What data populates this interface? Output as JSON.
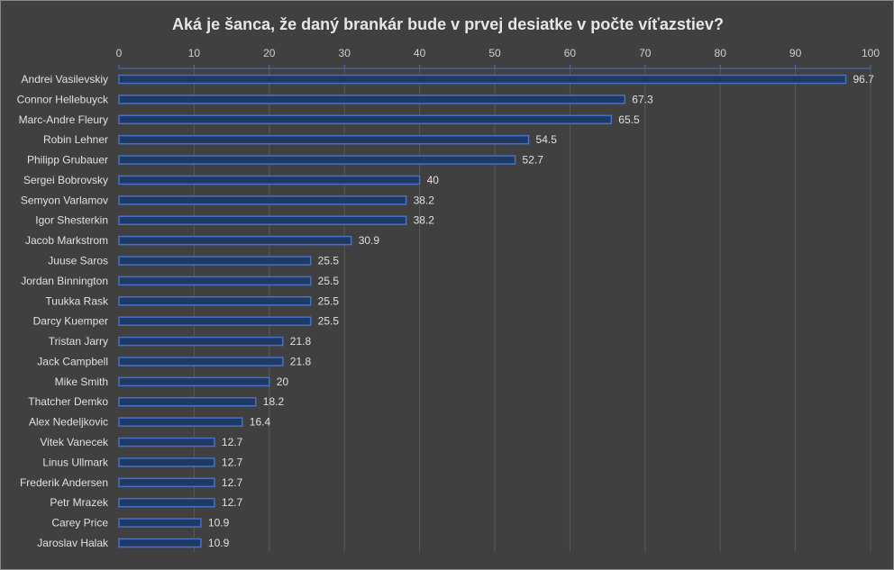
{
  "chart_data": {
    "type": "bar",
    "orientation": "horizontal",
    "title": "Aká je šanca, že daný brankár bude v prvej desiatke v počte víťazstiev?",
    "xlabel": "",
    "ylabel": "",
    "xlim": [
      0,
      100
    ],
    "ticks": [
      0,
      10,
      20,
      30,
      40,
      50,
      60,
      70,
      80,
      90,
      100
    ],
    "grid": true,
    "axis_position": "top",
    "categories": [
      "Andrei Vasilevskiy",
      "Connor Hellebuyck",
      "Marc-Andre Fleury",
      "Robin Lehner",
      "Philipp Grubauer",
      "Sergei Bobrovsky",
      "Semyon Varlamov",
      "Igor Shesterkin",
      "Jacob Markstrom",
      "Juuse Saros",
      "Jordan Binnington",
      "Tuukka Rask",
      "Darcy Kuemper",
      "Tristan Jarry",
      "Jack Campbell",
      "Mike Smith",
      "Thatcher Demko",
      "Alex Nedeljkovic",
      "Vitek Vanecek",
      "Linus Ullmark",
      "Frederik Andersen",
      "Petr Mrazek",
      "Carey Price",
      "Jaroslav Halak"
    ],
    "values": [
      96.7,
      67.3,
      65.5,
      54.5,
      52.7,
      40,
      38.2,
      38.2,
      30.9,
      25.5,
      25.5,
      25.5,
      25.5,
      21.8,
      21.8,
      20,
      18.2,
      16.4,
      12.7,
      12.7,
      12.7,
      12.7,
      10.9,
      10.9
    ],
    "colors": {
      "background": "#404040",
      "bar_fill": "#203864",
      "bar_edge": "#4472c4",
      "grid": "#595959",
      "text": "#e0e0e0"
    }
  }
}
